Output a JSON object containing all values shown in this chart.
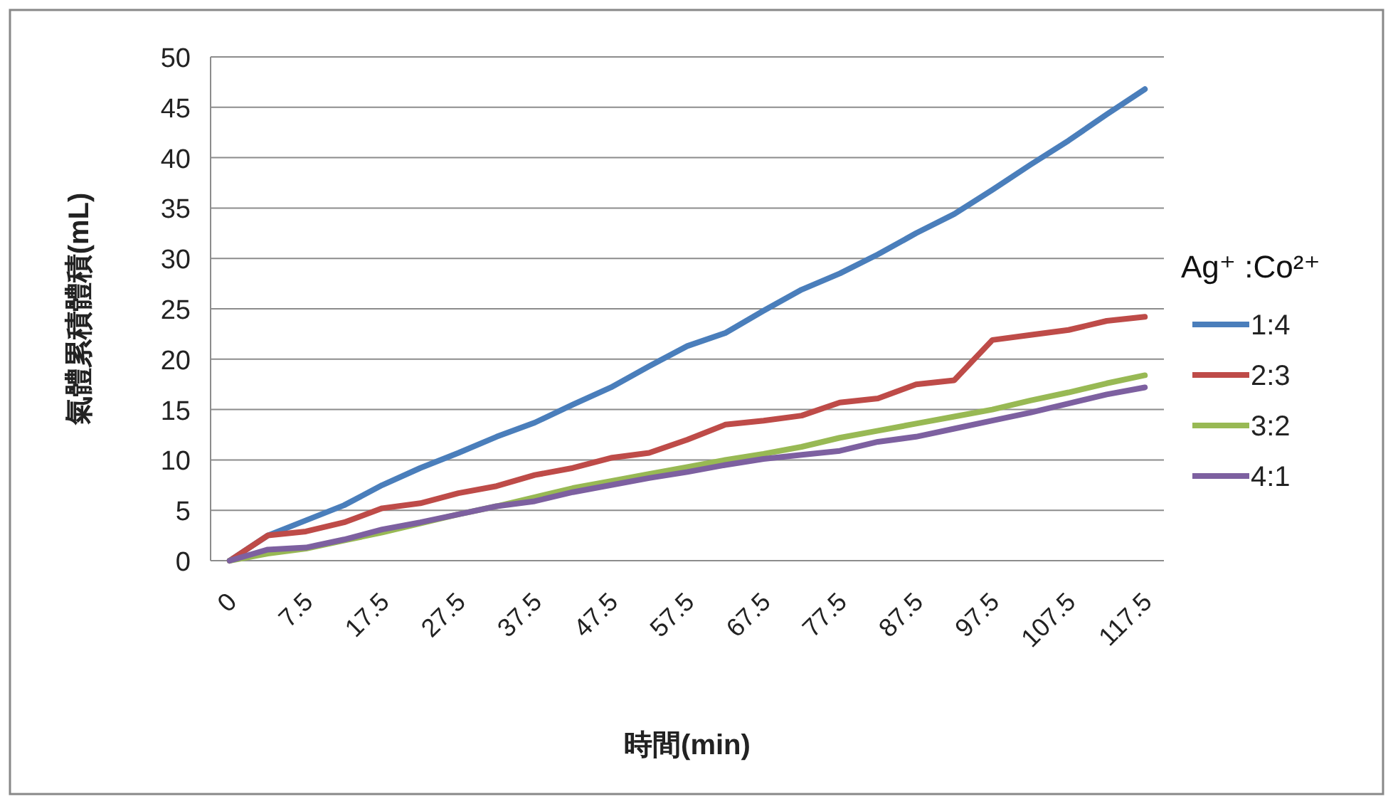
{
  "chart_data": {
    "type": "line",
    "xlabel": "時間(min)",
    "ylabel": "氣體累積體積(mL)",
    "legend_title": "Ag⁺ :Co²⁺",
    "legend": "right",
    "grid": "y",
    "marker": "none",
    "line_style": "solid",
    "categories": [
      "0",
      null,
      "7.5",
      null,
      "17.5",
      null,
      "27.5",
      null,
      "37.5",
      null,
      "47.5",
      null,
      "57.5",
      null,
      "67.5",
      null,
      "77.5",
      null,
      "87.5",
      null,
      "97.5",
      null,
      "107.5",
      null,
      "117.5"
    ],
    "ylim": [
      0,
      50
    ],
    "yticks": [
      0,
      5,
      10,
      15,
      20,
      25,
      30,
      35,
      40,
      45,
      50
    ],
    "series": [
      {
        "name": "1:4",
        "color": "#4a7ebb",
        "values": [
          0,
          2.5,
          4,
          5.5,
          7.5,
          9.2,
          10.7,
          12.3,
          13.7,
          15.5,
          17.2,
          19.3,
          21.3,
          22.6,
          24.8,
          26.9,
          28.5,
          30.4,
          32.5,
          34.4,
          36.8,
          39.3,
          41.7,
          44.3,
          46.8
        ]
      },
      {
        "name": "2:3",
        "color": "#be4b48",
        "values": [
          0,
          2.5,
          2.9,
          3.8,
          5.2,
          5.7,
          6.7,
          7.4,
          8.5,
          9.2,
          10.2,
          10.7,
          12,
          13.5,
          13.9,
          14.4,
          15.7,
          16.1,
          17.5,
          17.9,
          21.9,
          22.4,
          22.9,
          23.8,
          24.2
        ]
      },
      {
        "name": "3:2",
        "color": "#98b954",
        "values": [
          0,
          0.7,
          1.2,
          2,
          2.8,
          3.7,
          4.6,
          5.4,
          6.3,
          7.2,
          7.9,
          8.6,
          9.3,
          10,
          10.6,
          11.3,
          12.2,
          12.9,
          13.6,
          14.3,
          15,
          15.9,
          16.7,
          17.6,
          18.4
        ]
      },
      {
        "name": "4:1",
        "color": "#7d60a0",
        "values": [
          0,
          1.1,
          1.3,
          2.1,
          3.1,
          3.8,
          4.6,
          5.4,
          5.9,
          6.8,
          7.5,
          8.2,
          8.8,
          9.5,
          10.1,
          10.5,
          10.9,
          11.8,
          12.3,
          13.1,
          13.9,
          14.7,
          15.6,
          16.5,
          17.2
        ]
      }
    ]
  }
}
